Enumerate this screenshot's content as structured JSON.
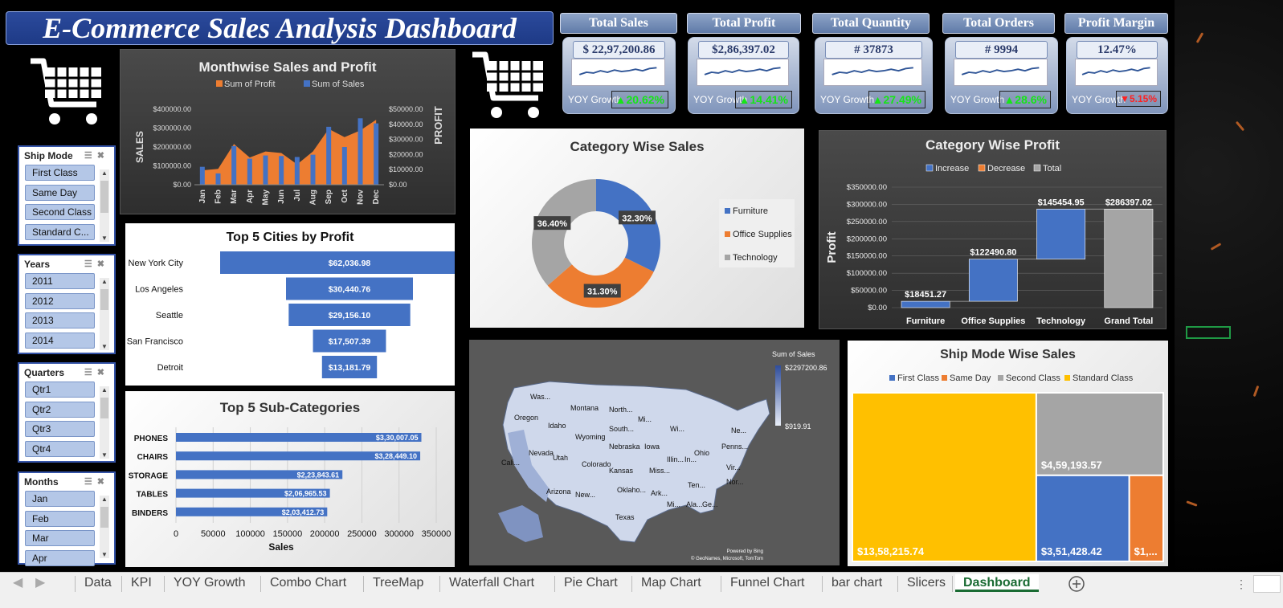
{
  "dashboard_title": "E-Commerce Sales Analysis Dashboard",
  "kpis": [
    {
      "title": "Total Sales",
      "value": "$ 22,97,200.86",
      "yoy_label": "YOY Growth",
      "growth": "20.62%",
      "direction": "up"
    },
    {
      "title": "Total Profit",
      "value": "$2,86,397.02",
      "yoy_label": "YOY Growth",
      "growth": "14.41%",
      "direction": "up"
    },
    {
      "title": "Total Quantity",
      "value": "# 37873",
      "yoy_label": "YOY Growth",
      "growth": "27.49%",
      "direction": "up"
    },
    {
      "title": "Total Orders",
      "value": "# 9994",
      "yoy_label": "YOY Growth",
      "growth": "28.6%",
      "direction": "up"
    },
    {
      "title": "Profit Margin",
      "value": "12.47%",
      "yoy_label": "YOY Growth",
      "growth": "5.15%",
      "direction": "down"
    }
  ],
  "slicers": [
    {
      "title": "Ship Mode",
      "items": [
        "First Class",
        "Same Day",
        "Second Class",
        "Standard C..."
      ]
    },
    {
      "title": "Years",
      "items": [
        "2011",
        "2012",
        "2013",
        "2014"
      ]
    },
    {
      "title": "Quarters",
      "items": [
        "Qtr1",
        "Qtr2",
        "Qtr3",
        "Qtr4"
      ]
    },
    {
      "title": "Months",
      "items": [
        "Jan",
        "Feb",
        "Mar",
        "Apr"
      ]
    }
  ],
  "sheet_tabs": [
    "Data",
    "KPI",
    "YOY Growth",
    "Combo Chart",
    "TreeMap",
    "Waterfall Chart",
    "Pie Chart",
    "Map Chart",
    "Funnel Chart",
    "bar chart",
    "Slicers",
    "Dashboard"
  ],
  "active_tab": "Dashboard",
  "colors": {
    "blue": "#4472c4",
    "orange": "#ed7d31",
    "gray": "#a5a5a5",
    "gold": "#ffc000"
  },
  "chart_data": [
    {
      "id": "combo",
      "type": "bar",
      "title": "Monthwise Sales and Profit",
      "xlabel": "",
      "ylabel": "SALES",
      "y2label": "PROFIT",
      "categories": [
        "Jan",
        "Feb",
        "Mar",
        "Apr",
        "May",
        "Jun",
        "Jul",
        "Aug",
        "Sep",
        "Oct",
        "Nov",
        "Dec"
      ],
      "series": [
        {
          "name": "Sum of Profit",
          "axis": "secondary",
          "chart": "area",
          "values": [
            9500,
            10500,
            27000,
            18000,
            22000,
            21000,
            13500,
            22000,
            37000,
            31500,
            36000,
            43000
          ]
        },
        {
          "name": "Sum of Sales",
          "axis": "primary",
          "chart": "bar",
          "values": [
            95000,
            60000,
            205000,
            138000,
            155000,
            152000,
            147000,
            159000,
            307000,
            200000,
            352000,
            325000
          ]
        }
      ],
      "ylim": [
        0,
        400000
      ],
      "y2lim": [
        0,
        50000
      ],
      "yticks": [
        "$0.00",
        "$100000.00",
        "$200000.00",
        "$300000.00",
        "$400000.00"
      ],
      "y2ticks": [
        "$0.00",
        "$10000.00",
        "$20000.00",
        "$30000.00",
        "$40000.00",
        "$50000.00"
      ]
    },
    {
      "id": "funnel",
      "type": "bar",
      "title": "Top 5 Cities by Profit",
      "categories": [
        "New York City",
        "Los Angeles",
        "Seattle",
        "San Francisco",
        "Detroit"
      ],
      "values": [
        62036.98,
        30440.76,
        29156.1,
        17507.39,
        13181.79
      ],
      "labels": [
        "$62,036.98",
        "$30,440.76",
        "$29,156.10",
        "$17,507.39",
        "$13,181.79"
      ]
    },
    {
      "id": "subcats",
      "type": "bar",
      "title": "Top 5 Sub-Categories",
      "xlabel": "Sales",
      "categories": [
        "PHONES",
        "CHAIRS",
        "STORAGE",
        "TABLES",
        "BINDERS"
      ],
      "values": [
        330007.05,
        328449.1,
        223843.61,
        206965.53,
        203412.73
      ],
      "labels": [
        "$3,30,007.05",
        "$3,28,449.10",
        "$2,23,843.61",
        "$2,06,965.53",
        "$2,03,412.73"
      ],
      "xlim": [
        0,
        350000
      ],
      "xticks": [
        "0",
        "50000",
        "100000",
        "150000",
        "200000",
        "250000",
        "300000",
        "350000"
      ]
    },
    {
      "id": "donut",
      "type": "pie",
      "title": "Category Wise Sales",
      "categories": [
        "Furniture",
        "Office Supplies",
        "Technology"
      ],
      "values": [
        32.3,
        31.3,
        36.4
      ],
      "labels": [
        "32.30%",
        "31.30%",
        "36.40%"
      ]
    },
    {
      "id": "waterfall",
      "type": "bar",
      "title": "Category Wise Profit",
      "ylabel": "Profit",
      "legend": [
        "Increase",
        "Decrease",
        "Total"
      ],
      "categories": [
        "Furniture",
        "Office Supplies",
        "Technology",
        "Grand Total"
      ],
      "values": [
        18451.27,
        122490.8,
        145454.95,
        286397.02
      ],
      "labels": [
        "$18451.27",
        "$122490.80",
        "$145454.95",
        "$286397.02"
      ],
      "ylim": [
        0,
        350000
      ],
      "yticks": [
        "$0.00",
        "$50000.00",
        "$100000.00",
        "$150000.00",
        "$200000.00",
        "$250000.00",
        "$300000.00",
        "$350000.00"
      ]
    },
    {
      "id": "treemap",
      "type": "heatmap",
      "title": "Ship Mode Wise Sales",
      "categories": [
        "First Class",
        "Same Day",
        "Second Class",
        "Standard Class"
      ],
      "values": [
        351428.42,
        128363.12,
        459193.57,
        1358215.74
      ],
      "labels": [
        "$3,51,428.42",
        "$1,...",
        "$4,59,193.57",
        "$13,58,215.74"
      ]
    }
  ],
  "map": {
    "legend_title": "Sum of Sales",
    "max_label": "$2297200.86",
    "min_label": "$919.91",
    "credit1": "Powered by Bing",
    "credit2": "© GeoNames, Microsoft, TomTom",
    "states": [
      "Was...",
      "Oregon",
      "Idaho",
      "Montana",
      "North...",
      "South...",
      "Wyoming",
      "Nevada",
      "Utah",
      "Colorado",
      "Cali...",
      "Arizona",
      "New...",
      "Nebraska",
      "Kansas",
      "Oklaho...",
      "Texas",
      "Iowa",
      "Miss...",
      "Illin...",
      "In...",
      "Ohio",
      "Penns...",
      "Ne...",
      "Vir...",
      "Nor...",
      "Ten...",
      "Ark...",
      "Mi...",
      "Ala...",
      "Ge...",
      "Wi...",
      "Mi..."
    ]
  }
}
